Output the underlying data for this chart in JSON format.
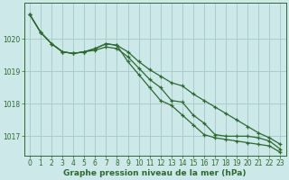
{
  "background_color": "#cce8e8",
  "grid_color": "#aacccc",
  "line_color": "#2d6a2d",
  "xlabel": "Graphe pression niveau de la mer (hPa)",
  "xlabel_fontsize": 6.5,
  "tick_fontsize": 5.5,
  "ylim": [
    1016.4,
    1021.1
  ],
  "xlim": [
    -0.5,
    23.5
  ],
  "yticks": [
    1017,
    1018,
    1019,
    1020
  ],
  "xticks": [
    0,
    1,
    2,
    3,
    4,
    5,
    6,
    7,
    8,
    9,
    10,
    11,
    12,
    13,
    14,
    15,
    16,
    17,
    18,
    19,
    20,
    21,
    22,
    23
  ],
  "series1_x": [
    0,
    1,
    2,
    3,
    4,
    5,
    6,
    7,
    8,
    9,
    10,
    11,
    12,
    13,
    14,
    15,
    16,
    17,
    18,
    19,
    20,
    21,
    22,
    23
  ],
  "series1_y": [
    1020.75,
    1020.2,
    1019.85,
    1019.6,
    1019.55,
    1019.6,
    1019.65,
    1019.75,
    1019.7,
    1019.45,
    1019.1,
    1018.75,
    1018.5,
    1018.1,
    1018.05,
    1017.65,
    1017.4,
    1017.05,
    1017.0,
    1017.0,
    1017.0,
    1016.95,
    1016.85,
    1016.6
  ],
  "series2_x": [
    0,
    1,
    2,
    3,
    4,
    5,
    6,
    7,
    8,
    9,
    10,
    11,
    12,
    13,
    14,
    15,
    16,
    17,
    18,
    19,
    20,
    21,
    22,
    23
  ],
  "series2_y": [
    1020.75,
    1020.2,
    1019.85,
    1019.6,
    1019.55,
    1019.6,
    1019.7,
    1019.85,
    1019.8,
    1019.6,
    1019.3,
    1019.05,
    1018.85,
    1018.65,
    1018.55,
    1018.3,
    1018.1,
    1017.9,
    1017.7,
    1017.5,
    1017.3,
    1017.1,
    1016.95,
    1016.75
  ],
  "series3_x": [
    0,
    1,
    2,
    3,
    4,
    5,
    6,
    7,
    8,
    9,
    10,
    11,
    12,
    13,
    14,
    15,
    16,
    17,
    18,
    19,
    20,
    21,
    22,
    23
  ],
  "series3_y": [
    1020.75,
    1020.2,
    1019.85,
    1019.6,
    1019.55,
    1019.6,
    1019.7,
    1019.85,
    1019.8,
    1019.3,
    1018.9,
    1018.5,
    1018.1,
    1017.95,
    1017.65,
    1017.35,
    1017.05,
    1016.95,
    1016.9,
    1016.85,
    1016.8,
    1016.75,
    1016.7,
    1016.5
  ]
}
